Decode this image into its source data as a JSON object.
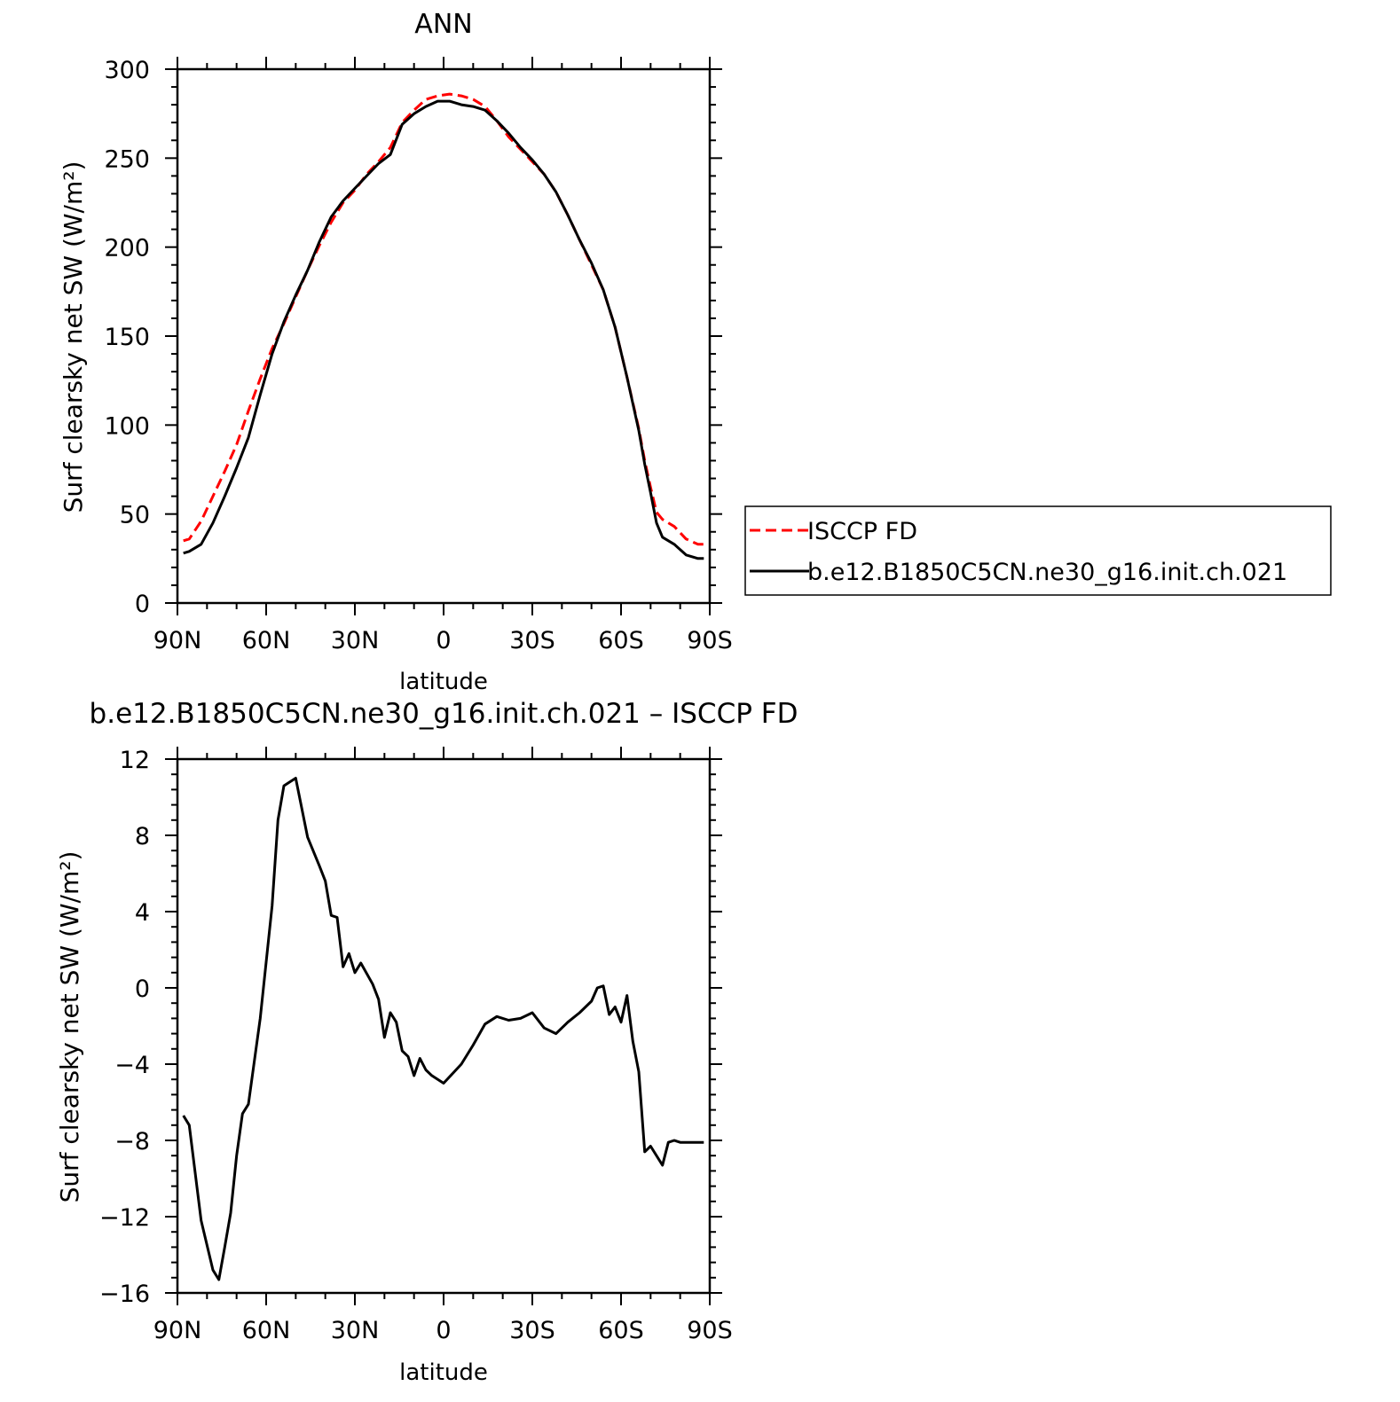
{
  "chart_data": [
    {
      "type": "line",
      "title": "ANN",
      "xlabel": "latitude",
      "ylabel": "Surf clearsky net SW (W/m²)",
      "x_axis": {
        "direction": "north-to-south",
        "range": [
          90,
          -90
        ],
        "ticks": [
          90,
          60,
          30,
          0,
          -30,
          -60,
          -90
        ],
        "tick_labels": [
          "90N",
          "60N",
          "30N",
          "0",
          "30S",
          "60S",
          "90S"
        ]
      },
      "y_axis": {
        "range": [
          0,
          300
        ],
        "ticks": [
          0,
          50,
          100,
          150,
          200,
          250,
          300
        ],
        "tick_labels": [
          "0",
          "50",
          "100",
          "150",
          "200",
          "250",
          "300"
        ]
      },
      "grid": false,
      "legend": {
        "placement": "right, outside plot"
      },
      "series": [
        {
          "name": "ISCCP FD",
          "color": "#ff0000",
          "dash": "dashed",
          "x": [
            88,
            86,
            82,
            78,
            74,
            70,
            66,
            62,
            58,
            54,
            50,
            46,
            42,
            38,
            34,
            30,
            26,
            22,
            18,
            14,
            10,
            6,
            2,
            -2,
            -6,
            -10,
            -14,
            -18,
            -22,
            -26,
            -30,
            -34,
            -38,
            -42,
            -46,
            -50,
            -54,
            -58,
            -62,
            -66,
            -68,
            -70,
            -72,
            -74,
            -78,
            -82,
            -86,
            -88
          ],
          "y": [
            35,
            36,
            46,
            60,
            74,
            89,
            108,
            126,
            143,
            157,
            172,
            187,
            201,
            214,
            225,
            232,
            241,
            248,
            256,
            270,
            277,
            283,
            285,
            286,
            285,
            283,
            279,
            271,
            262,
            255,
            248,
            241,
            231,
            218,
            204,
            190,
            176,
            155,
            127,
            98,
            80,
            65,
            51,
            47,
            43,
            36,
            33,
            33
          ]
        },
        {
          "name": "b.e12.B1850C5CN.ne30_g16.init.ch.021",
          "color": "#000000",
          "dash": "solid",
          "x": [
            88,
            86,
            82,
            78,
            74,
            70,
            66,
            62,
            58,
            54,
            50,
            46,
            42,
            38,
            34,
            30,
            26,
            22,
            18,
            14,
            10,
            6,
            2,
            -2,
            -6,
            -10,
            -14,
            -18,
            -22,
            -26,
            -30,
            -34,
            -38,
            -42,
            -46,
            -50,
            -54,
            -58,
            -62,
            -66,
            -68,
            -70,
            -72,
            -74,
            -78,
            -82,
            -86,
            -88
          ],
          "y": [
            28,
            29,
            33,
            45,
            60,
            76,
            93,
            117,
            140,
            158,
            173,
            187,
            203,
            217,
            226,
            233,
            240,
            247,
            252,
            269,
            275,
            279,
            282,
            282,
            280,
            279,
            277,
            271,
            264,
            256,
            249,
            241,
            231,
            218,
            204,
            191,
            176,
            155,
            127,
            97,
            78,
            62,
            45,
            37,
            33,
            27,
            25,
            25
          ]
        }
      ]
    },
    {
      "type": "line",
      "title": "b.e12.B1850C5CN.ne30_g16.init.ch.021 – ISCCP FD",
      "xlabel": "latitude",
      "ylabel": "Surf clearsky net SW (W/m²)",
      "x_axis": {
        "direction": "north-to-south",
        "range": [
          90,
          -90
        ],
        "ticks": [
          90,
          60,
          30,
          0,
          -30,
          -60,
          -90
        ],
        "tick_labels": [
          "90N",
          "60N",
          "30N",
          "0",
          "30S",
          "60S",
          "90S"
        ]
      },
      "y_axis": {
        "range": [
          -16,
          12
        ],
        "ticks": [
          -16,
          -12,
          -8,
          -4,
          0,
          4,
          8,
          12
        ],
        "tick_labels": [
          "−16",
          "−12",
          "−8",
          "−4",
          "0",
          "4",
          "8",
          "12"
        ]
      },
      "grid": false,
      "series": [
        {
          "color": "#000000",
          "dash": "solid",
          "x": [
            88,
            86,
            82,
            78,
            76,
            74,
            72,
            70,
            68,
            66,
            62,
            58,
            56,
            54,
            52,
            50,
            46,
            42,
            40,
            38,
            36,
            34,
            32,
            30,
            28,
            24,
            22,
            20,
            18,
            16,
            14,
            12,
            10,
            8,
            6,
            4,
            0,
            -6,
            -10,
            -14,
            -18,
            -22,
            -26,
            -30,
            -34,
            -38,
            -42,
            -46,
            -50,
            -52,
            -54,
            -56,
            -58,
            -60,
            -62,
            -64,
            -66,
            -68,
            -70,
            -74,
            -76,
            -78,
            -80,
            -82,
            -84,
            -86,
            -88
          ],
          "y": [
            -6.7,
            -7.2,
            -12.2,
            -14.8,
            -15.3,
            -13.6,
            -11.8,
            -8.8,
            -6.6,
            -6.1,
            -1.6,
            4.3,
            8.8,
            10.6,
            10.8,
            11.0,
            7.9,
            6.4,
            5.6,
            3.8,
            3.7,
            1.1,
            1.8,
            0.8,
            1.3,
            0.2,
            -0.6,
            -2.6,
            -1.3,
            -1.8,
            -3.3,
            -3.6,
            -4.6,
            -3.7,
            -4.3,
            -4.6,
            -5.0,
            -4.0,
            -3.0,
            -1.9,
            -1.5,
            -1.7,
            -1.6,
            -1.3,
            -2.1,
            -2.4,
            -1.8,
            -1.3,
            -0.7,
            0.0,
            0.1,
            -1.4,
            -1.0,
            -1.8,
            -0.4,
            -2.8,
            -4.4,
            -8.6,
            -8.3,
            -9.3,
            -8.1,
            -8.0,
            -8.1,
            -8.1,
            -8.1,
            -8.1,
            -8.1
          ]
        }
      ]
    }
  ]
}
